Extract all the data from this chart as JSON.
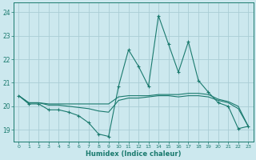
{
  "xlabel": "Humidex (Indice chaleur)",
  "xlim": [
    -0.5,
    23.5
  ],
  "ylim": [
    18.5,
    24.4
  ],
  "yticks": [
    19,
    20,
    21,
    22,
    23,
    24
  ],
  "xticks": [
    0,
    1,
    2,
    3,
    4,
    5,
    6,
    7,
    8,
    9,
    10,
    11,
    12,
    13,
    14,
    15,
    16,
    17,
    18,
    19,
    20,
    21,
    22,
    23
  ],
  "bg_color": "#cce8ee",
  "line_color": "#1a7a6e",
  "grid_color": "#aacdd5",
  "line1_x": [
    0,
    1,
    2,
    3,
    4,
    5,
    6,
    7,
    8,
    9,
    10,
    11,
    12,
    13,
    14,
    15,
    16,
    17,
    18,
    19,
    20,
    21,
    22,
    23
  ],
  "line1_y": [
    20.45,
    20.1,
    20.1,
    19.85,
    19.85,
    19.75,
    19.6,
    19.3,
    18.82,
    18.72,
    20.85,
    22.4,
    21.7,
    20.85,
    23.85,
    22.65,
    21.45,
    22.75,
    21.1,
    20.6,
    20.15,
    20.0,
    19.05,
    19.15
  ],
  "line2_x": [
    0,
    1,
    2,
    3,
    4,
    5,
    6,
    7,
    8,
    9,
    10,
    11,
    12,
    13,
    14,
    15,
    16,
    17,
    18,
    19,
    20,
    21,
    22,
    23
  ],
  "line2_y": [
    20.45,
    20.15,
    20.15,
    20.05,
    20.05,
    20.0,
    19.95,
    19.9,
    19.8,
    19.75,
    20.25,
    20.35,
    20.35,
    20.4,
    20.45,
    20.45,
    20.4,
    20.45,
    20.45,
    20.4,
    20.25,
    20.15,
    19.9,
    19.15
  ],
  "line3_x": [
    0,
    1,
    2,
    3,
    4,
    5,
    6,
    7,
    8,
    9,
    10,
    11,
    12,
    13,
    14,
    15,
    16,
    17,
    18,
    19,
    20,
    21,
    22,
    23
  ],
  "line3_y": [
    20.45,
    20.15,
    20.15,
    20.1,
    20.1,
    20.1,
    20.1,
    20.1,
    20.1,
    20.1,
    20.4,
    20.45,
    20.45,
    20.45,
    20.5,
    20.5,
    20.5,
    20.55,
    20.55,
    20.5,
    20.3,
    20.2,
    20.0,
    19.15
  ]
}
